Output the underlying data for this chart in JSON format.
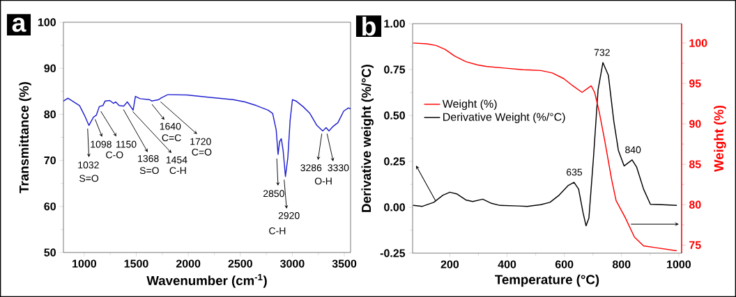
{
  "chart_data": [
    {
      "type": "line",
      "title": "a",
      "xlabel": "Wavenumber (cm$^{-1}$)",
      "ylabel": "Transmittance (%)",
      "xlim": [
        800,
        3560
      ],
      "ylim": [
        50,
        100
      ],
      "xticks": [
        1000,
        1500,
        2000,
        2500,
        3000,
        3500
      ],
      "yticks": [
        50,
        60,
        70,
        80,
        90,
        100
      ],
      "series": [
        {
          "color": "#2020d0",
          "x": [
            803,
            843,
            899,
            955,
            1000,
            1045,
            1089,
            1116,
            1145,
            1179,
            1201,
            1246,
            1280,
            1302,
            1336,
            1380,
            1414,
            1470,
            1492,
            1537,
            1626,
            1648,
            1716,
            1742,
            1805,
            1984,
            2208,
            2431,
            2543,
            2655,
            2767,
            2811,
            2845,
            2863,
            2878,
            2894,
            2912,
            2934,
            2957,
            2979,
            3001,
            3035,
            3102,
            3169,
            3236,
            3292,
            3325,
            3352,
            3393,
            3438,
            3494,
            3539,
            3560
          ],
          "values": [
            82.9,
            83.5,
            82.7,
            81.9,
            79.9,
            77.6,
            79.4,
            79.8,
            81.7,
            81.9,
            82.9,
            83.0,
            82.4,
            82.7,
            81.9,
            81.8,
            82.7,
            80.9,
            83.9,
            83.4,
            83.2,
            82.9,
            83.2,
            83.6,
            84.3,
            84.2,
            83.7,
            83.2,
            82.7,
            81.9,
            80.9,
            80.2,
            76.6,
            71.3,
            74.1,
            74.7,
            72.1,
            66.5,
            70.6,
            78.7,
            83.2,
            82.9,
            81.7,
            80.2,
            77.6,
            76.4,
            77.1,
            76.4,
            77.4,
            78.2,
            80.7,
            81.4,
            81.2
          ]
        }
      ],
      "annotations": [
        {
          "text": "1032",
          "x": 1032,
          "y": 77.3
        },
        "S=O",
        {
          "text": "1098",
          "x": 1098,
          "y": 79.3
        },
        {
          "text": "1150",
          "x": 1150,
          "y": 81.0
        },
        "C-O",
        {
          "text": "1368",
          "x": 1368,
          "y": 81.4
        },
        "S=O",
        {
          "text": "1454",
          "x": 1454,
          "y": 80.9
        },
        "C-H",
        {
          "text": "1640",
          "x": 1640,
          "y": 82.5
        },
        "C=C",
        {
          "text": "1720",
          "x": 1720,
          "y": 83.0
        },
        "C=O",
        {
          "text": "2850",
          "x": 2850,
          "y": 70.8
        },
        {
          "text": "2920",
          "x": 2920,
          "y": 66.2
        },
        "C-H",
        {
          "text": "3286",
          "x": 3286,
          "y": 76.2
        },
        {
          "text": "3330",
          "x": 3330,
          "y": 76.2
        },
        "O-H"
      ]
    },
    {
      "type": "line",
      "title": "b",
      "xlabel": "Temperature (°C)",
      "ylabel": "Derivative weight (%/°C)",
      "y2label": "Weight (%)",
      "xlim": [
        70,
        1010
      ],
      "ylim": [
        -0.25,
        1.0
      ],
      "y2lim": [
        74,
        102.4
      ],
      "xticks": [
        200,
        400,
        600,
        800,
        1000
      ],
      "yticks": [
        {
          "value": -0.25,
          "label": "-0.25"
        },
        {
          "value": 0,
          "label": "0.00"
        },
        {
          "value": 0.25,
          "label": "0.25"
        },
        {
          "value": 0.5,
          "label": "0.50"
        },
        {
          "value": 0.75,
          "label": "0.75"
        },
        {
          "value": 1,
          "label": "1.00"
        }
      ],
      "y2ticks": [
        75,
        80,
        85,
        90,
        95,
        100
      ],
      "legend": "left",
      "series": [
        {
          "name": "Weight (%)",
          "color": "#ff0000",
          "axis": "y2",
          "x": [
            73,
            120,
            152,
            184,
            216,
            256,
            296,
            327,
            391,
            455,
            518,
            558,
            598,
            630,
            662,
            682,
            694,
            706,
            722,
            741,
            765,
            781,
            813,
            845,
            877,
            916,
            992
          ],
          "values": [
            100.0,
            99.9,
            99.7,
            99.2,
            98.4,
            97.7,
            97.3,
            97.1,
            96.9,
            96.7,
            96.6,
            96.3,
            95.6,
            94.7,
            93.9,
            94.4,
            94.7,
            93.9,
            91.5,
            88.0,
            83.2,
            80.5,
            78.4,
            76.0,
            74.9,
            74.7,
            74.3
          ]
        },
        {
          "name": "Derivative Weight (%/°C)",
          "color": "#000000",
          "axis": "y",
          "x": [
            73,
            104,
            144,
            176,
            200,
            224,
            256,
            280,
            315,
            343,
            375,
            439,
            471,
            518,
            550,
            582,
            614,
            634,
            650,
            666,
            676,
            686,
            702,
            718,
            735,
            754,
            773,
            789,
            809,
            837,
            853,
            877,
            901,
            941,
            992
          ],
          "values": [
            0.01,
            0.005,
            0.027,
            0.066,
            0.082,
            0.073,
            0.04,
            0.031,
            0.044,
            0.023,
            0.01,
            0.007,
            0.005,
            0.014,
            0.027,
            0.066,
            0.119,
            0.136,
            0.099,
            -0.033,
            -0.101,
            -0.059,
            0.271,
            0.64,
            0.788,
            0.719,
            0.469,
            0.31,
            0.225,
            0.258,
            0.218,
            0.099,
            0.016,
            0.014,
            0.01
          ]
        }
      ],
      "annotations": [
        {
          "text": "635",
          "x": 635,
          "y": 0.136
        },
        {
          "text": "732",
          "x": 732,
          "y": 0.788
        },
        {
          "text": "840",
          "x": 840,
          "y": 0.258
        }
      ]
    }
  ]
}
